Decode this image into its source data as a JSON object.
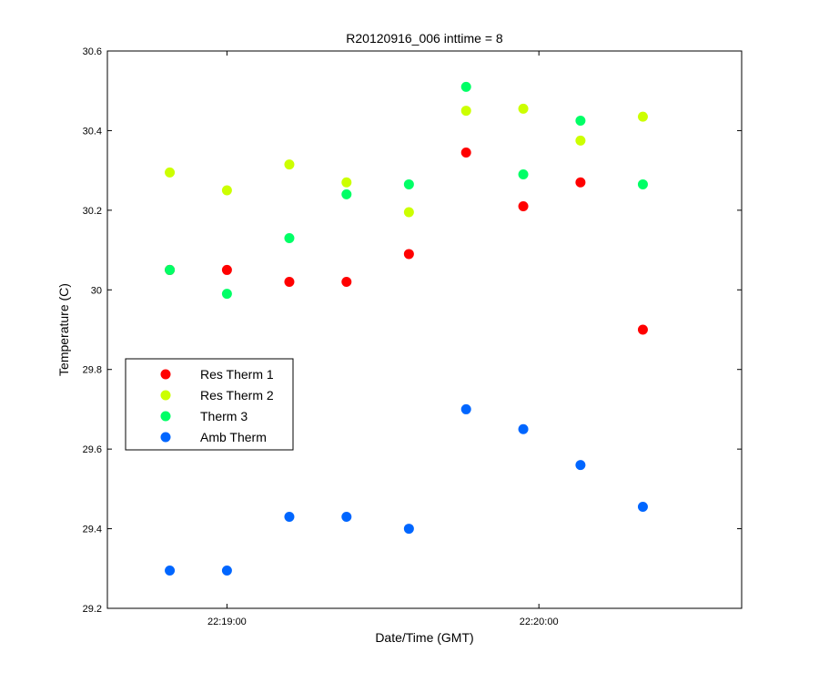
{
  "chart_data": {
    "type": "scatter",
    "title": "R20120916_006 inttime = 8",
    "xlabel": "Date/Time (GMT)",
    "ylabel": "Temperature (C)",
    "x_unit": "time (GMT)",
    "xlim": [
      "22:18:37",
      "22:20:39"
    ],
    "x_ticks": [
      "22:19:00",
      "22:20:00"
    ],
    "ylim": [
      29.2,
      30.6
    ],
    "y_ticks": [
      "29.2",
      "29.4",
      "29.6",
      "29.8",
      "30",
      "30.2",
      "30.4",
      "30.6"
    ],
    "grid": false,
    "legend_position": "left",
    "x": [
      "22:18:49",
      "22:19:00",
      "22:19:12",
      "22:19:23",
      "22:19:35",
      "22:19:46",
      "22:19:57",
      "22:20:08",
      "22:20:20"
    ],
    "series": [
      {
        "name": "Res Therm 1",
        "color": "#ff0000",
        "values": [
          30.05,
          30.05,
          30.02,
          30.02,
          30.09,
          30.345,
          30.21,
          30.27,
          29.9
        ]
      },
      {
        "name": "Res Therm 2",
        "color": "#ccff00",
        "values": [
          30.295,
          30.25,
          30.315,
          30.27,
          30.195,
          30.45,
          30.455,
          30.375,
          30.435
        ]
      },
      {
        "name": "Therm 3",
        "color": "#00ff66",
        "values": [
          30.05,
          29.99,
          30.13,
          30.24,
          30.265,
          30.51,
          30.29,
          30.425,
          30.265
        ]
      },
      {
        "name": "Amb Therm",
        "color": "#0066ff",
        "values": [
          29.295,
          29.295,
          29.43,
          29.43,
          29.4,
          29.7,
          29.65,
          29.56,
          29.455
        ]
      }
    ]
  }
}
